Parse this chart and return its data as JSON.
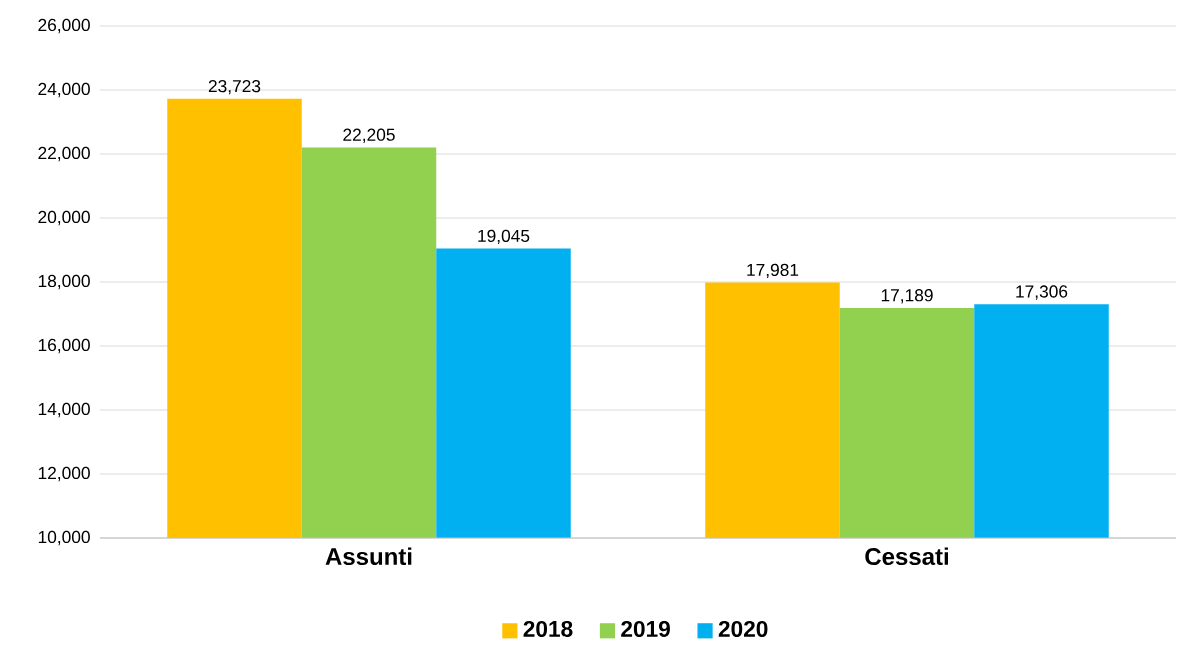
{
  "chart_data": {
    "type": "bar",
    "categories": [
      "Assunti",
      "Cessati"
    ],
    "series": [
      {
        "name": "2018",
        "color": "#ffc000",
        "values": [
          23723,
          17981
        ],
        "value_labels": [
          "23,723",
          "17,981"
        ]
      },
      {
        "name": "2019",
        "color": "#92d050",
        "values": [
          22205,
          17189
        ],
        "value_labels": [
          "22,205",
          "17,189"
        ]
      },
      {
        "name": "2020",
        "color": "#00b0f0",
        "values": [
          19045,
          17306
        ],
        "value_labels": [
          "19,045",
          "17,306"
        ]
      }
    ],
    "ylim": [
      10000,
      26000
    ],
    "yticks": [
      {
        "value": 10000,
        "label": "10,000"
      },
      {
        "value": 12000,
        "label": "12,000"
      },
      {
        "value": 14000,
        "label": "14,000"
      },
      {
        "value": 16000,
        "label": "16,000"
      },
      {
        "value": 18000,
        "label": "18,000"
      },
      {
        "value": 20000,
        "label": "20,000"
      },
      {
        "value": 22000,
        "label": "22,000"
      },
      {
        "value": 24000,
        "label": "24,000"
      },
      {
        "value": 26000,
        "label": "26,000"
      }
    ],
    "grid": "y",
    "legend": "bottom"
  }
}
